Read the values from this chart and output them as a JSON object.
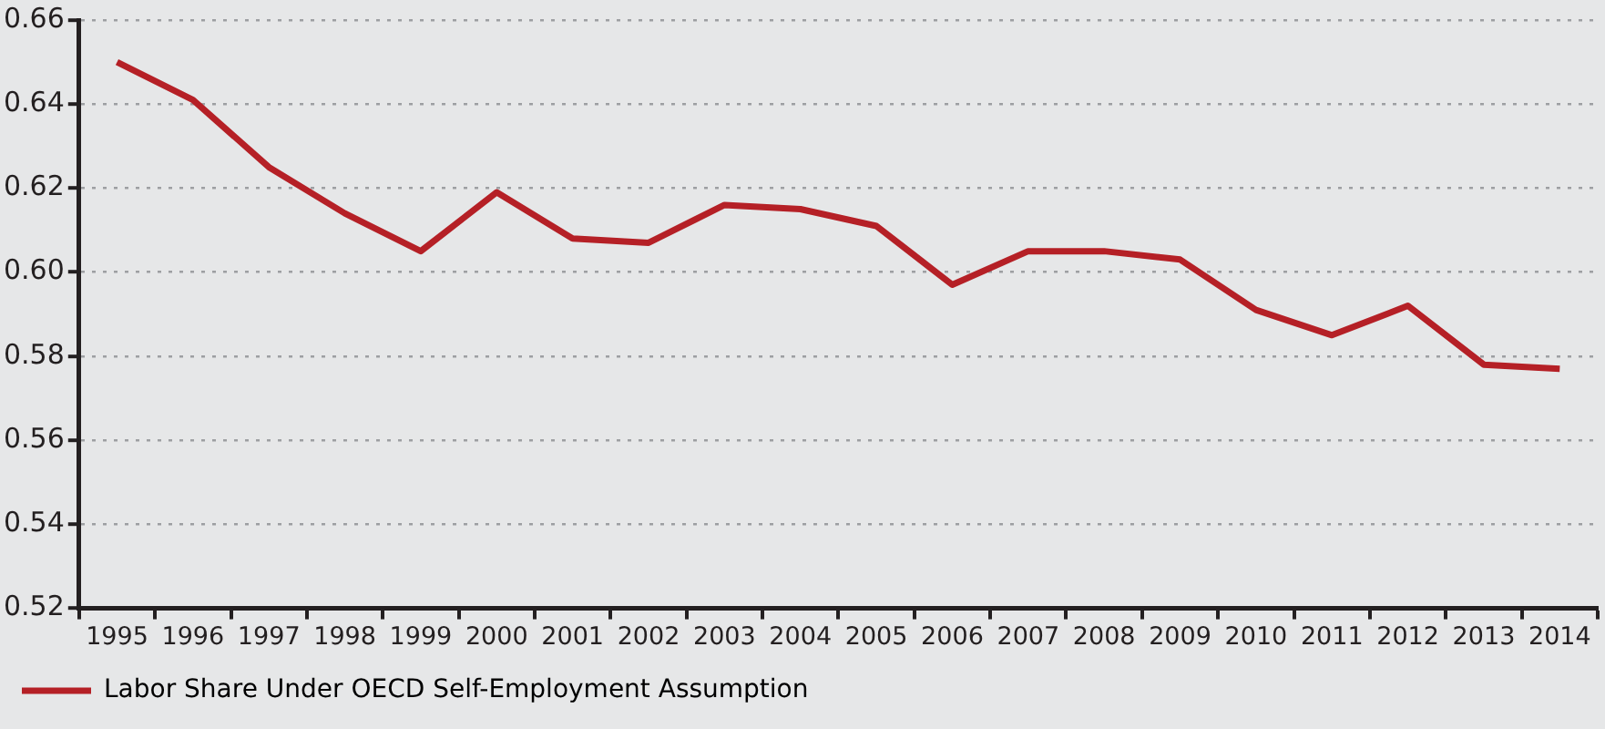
{
  "chart_data": {
    "type": "line",
    "categories": [
      "1995",
      "1996",
      "1997",
      "1998",
      "1999",
      "2000",
      "2001",
      "2002",
      "2003",
      "2004",
      "2005",
      "2006",
      "2007",
      "2008",
      "2009",
      "2010",
      "2011",
      "2012",
      "2013",
      "2014"
    ],
    "series": [
      {
        "name": "Labor Share Under OECD Self-Employment Assumption",
        "color": "#b52026",
        "values": [
          0.65,
          0.641,
          0.625,
          0.614,
          0.605,
          0.619,
          0.608,
          0.607,
          0.616,
          0.615,
          0.611,
          0.597,
          0.605,
          0.605,
          0.603,
          0.591,
          0.585,
          0.592,
          0.578,
          0.577
        ]
      }
    ],
    "ylim": [
      0.52,
      0.66
    ],
    "yticks": [
      {
        "value": 0.52,
        "label": "0.52"
      },
      {
        "value": 0.54,
        "label": "0.54"
      },
      {
        "value": 0.56,
        "label": "0.56"
      },
      {
        "value": 0.58,
        "label": "0.58"
      },
      {
        "value": 0.6,
        "label": "0.60"
      },
      {
        "value": 0.62,
        "label": "0.62"
      },
      {
        "value": 0.64,
        "label": "0.64"
      },
      {
        "value": 0.66,
        "label": "0.66"
      }
    ],
    "grid": "y",
    "legend": "bottom left",
    "marker": "none",
    "line_style": "solid"
  }
}
